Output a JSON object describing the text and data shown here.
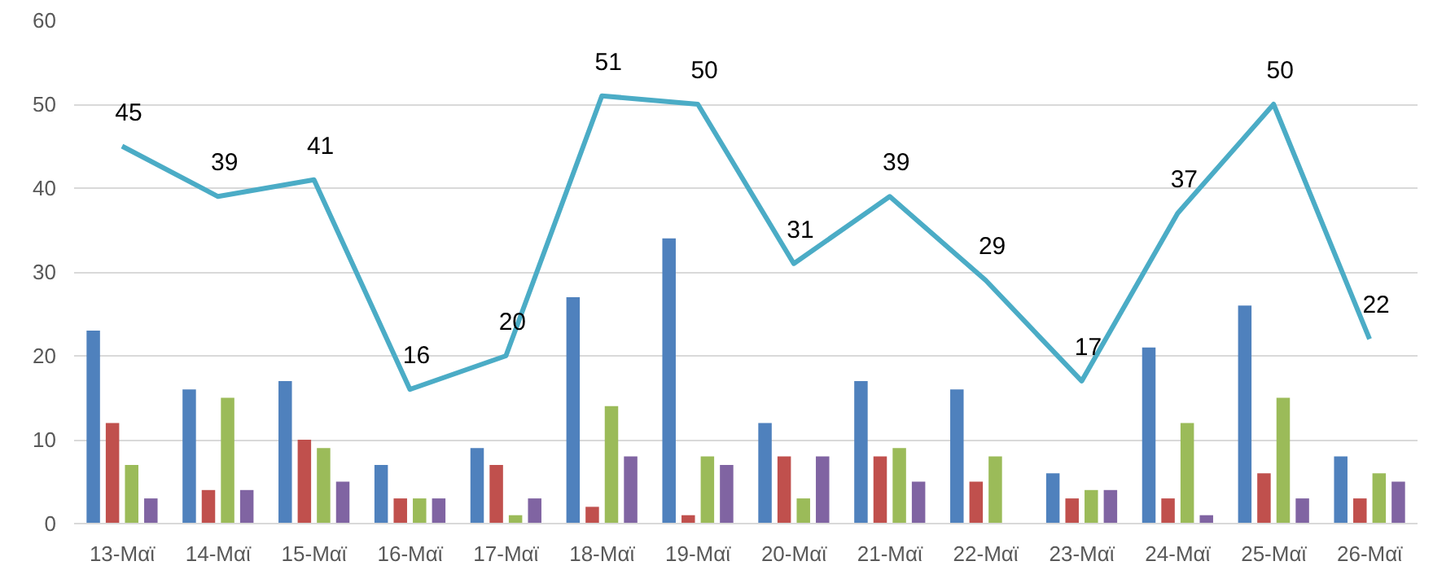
{
  "chart_data": {
    "type": "bar",
    "categories": [
      "13-Μαϊ",
      "14-Μαϊ",
      "15-Μαϊ",
      "16-Μαϊ",
      "17-Μαϊ",
      "18-Μαϊ",
      "19-Μαϊ",
      "20-Μαϊ",
      "21-Μαϊ",
      "22-Μαϊ",
      "23-Μαϊ",
      "24-Μαϊ",
      "25-Μαϊ",
      "26-Μαϊ"
    ],
    "ylim": [
      0,
      60
    ],
    "yticks": [
      0,
      10,
      20,
      30,
      40,
      50,
      60
    ],
    "grid": "y",
    "series": [
      {
        "color": "#4f81bd",
        "values": [
          23,
          16,
          17,
          7,
          9,
          27,
          34,
          12,
          17,
          16,
          6,
          21,
          26,
          8
        ]
      },
      {
        "color": "#c0504d",
        "values": [
          12,
          4,
          10,
          3,
          7,
          2,
          1,
          8,
          8,
          5,
          3,
          3,
          6,
          3
        ]
      },
      {
        "color": "#9bbb59",
        "values": [
          7,
          15,
          9,
          3,
          1,
          14,
          8,
          3,
          9,
          8,
          4,
          12,
          15,
          6
        ]
      },
      {
        "color": "#8064a2",
        "values": [
          3,
          4,
          5,
          3,
          3,
          8,
          7,
          8,
          5,
          0,
          4,
          1,
          3,
          5
        ]
      },
      {
        "type": "line",
        "color": "#4bacc6",
        "values": [
          45,
          39,
          41,
          16,
          20,
          51,
          50,
          31,
          39,
          29,
          17,
          37,
          50,
          22
        ],
        "value_labels": [
          "45",
          "39",
          "41",
          "16",
          "20",
          "51",
          "50",
          "31",
          "39",
          "29",
          "17",
          "37",
          "50",
          "22"
        ]
      }
    ]
  }
}
